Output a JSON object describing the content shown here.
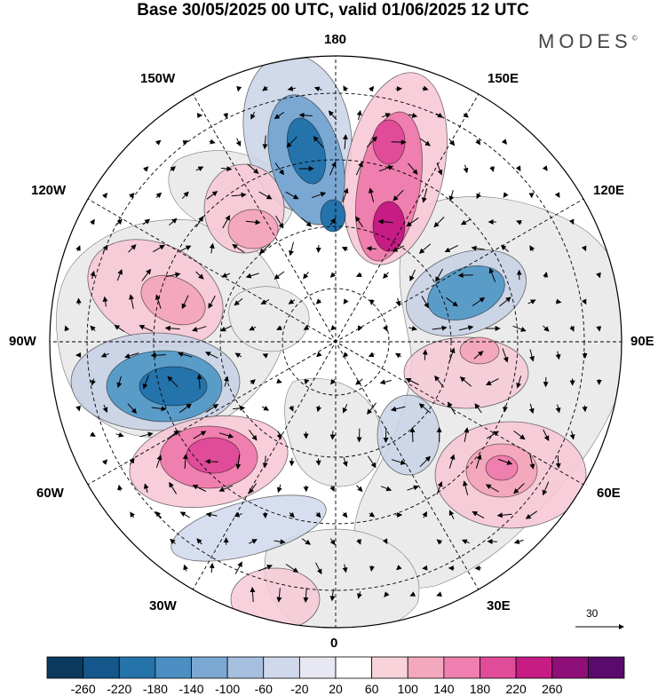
{
  "header": {
    "title": "Base 30/05/2025 00 UTC, valid 01/06/2025 12 UTC",
    "brand": "MODES",
    "brand_mark": "©"
  },
  "map": {
    "projection": "north polar stereographic",
    "longitude_labels": {
      "top": "180",
      "bottom": "0",
      "left": "90W",
      "right": "90E",
      "upper_left_1": "150W",
      "upper_left_2": "120W",
      "upper_right_1": "150E",
      "upper_right_2": "120E",
      "lower_left_1": "60W",
      "lower_left_2": "30W",
      "lower_right_1": "60E",
      "lower_right_2": "30E"
    },
    "vector_scale_label": "30",
    "colors": {
      "positive_strong": "#c2187a",
      "positive_mid": "#e76fa8",
      "positive_weak": "#f6c9d6",
      "negative_strong": "#1f6fa4",
      "negative_mid": "#5a9cc8",
      "negative_weak": "#c9d3e6",
      "land": "#ebebeb",
      "ocean": "#ffffff"
    }
  },
  "colorbar": {
    "ticks": [
      "-260",
      "-220",
      "-180",
      "-140",
      "-100",
      "-60",
      "-20",
      "20",
      "60",
      "100",
      "140",
      "180",
      "220",
      "260"
    ],
    "colors": [
      "#0b3a5e",
      "#15578a",
      "#2473ab",
      "#4a8ec2",
      "#7aa8d3",
      "#a7bfdf",
      "#d0d8ec",
      "#e8e8f3",
      "#ffffff",
      "#f8d3d9",
      "#f3a8bd",
      "#ef7fae",
      "#e04c99",
      "#c61c84",
      "#8e0f77",
      "#5a0a6b"
    ]
  }
}
